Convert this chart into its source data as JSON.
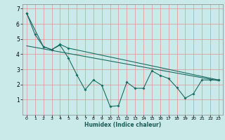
{
  "xlabel": "Humidex (Indice chaleur)",
  "bg_color": "#caeaea",
  "line_color": "#1a6b62",
  "grid_color": "#e88888",
  "xlim": [
    -0.5,
    23.5
  ],
  "ylim": [
    0,
    7.3
  ],
  "yticks": [
    1,
    2,
    3,
    4,
    5,
    6,
    7
  ],
  "xticks": [
    0,
    1,
    2,
    3,
    4,
    5,
    6,
    7,
    8,
    9,
    10,
    11,
    12,
    13,
    14,
    15,
    16,
    17,
    18,
    19,
    20,
    21,
    22,
    23
  ],
  "series1_x": [
    0,
    1,
    2,
    3,
    4,
    5,
    6,
    7,
    8,
    9,
    10,
    11,
    12,
    13,
    14,
    15,
    16,
    17,
    18,
    19,
    20,
    21,
    22,
    23
  ],
  "series1_y": [
    6.7,
    5.3,
    4.5,
    4.3,
    4.6,
    3.75,
    2.65,
    1.65,
    2.3,
    1.95,
    0.55,
    0.6,
    2.15,
    1.75,
    1.75,
    2.9,
    2.6,
    2.4,
    1.8,
    1.1,
    1.4,
    2.3,
    2.3,
    2.3
  ],
  "series2_x": [
    0,
    2,
    3,
    4,
    5,
    23
  ],
  "series2_y": [
    6.7,
    4.5,
    4.3,
    4.65,
    4.4,
    2.3
  ],
  "trend_x": [
    0,
    23
  ],
  "trend_y": [
    4.55,
    2.25
  ]
}
